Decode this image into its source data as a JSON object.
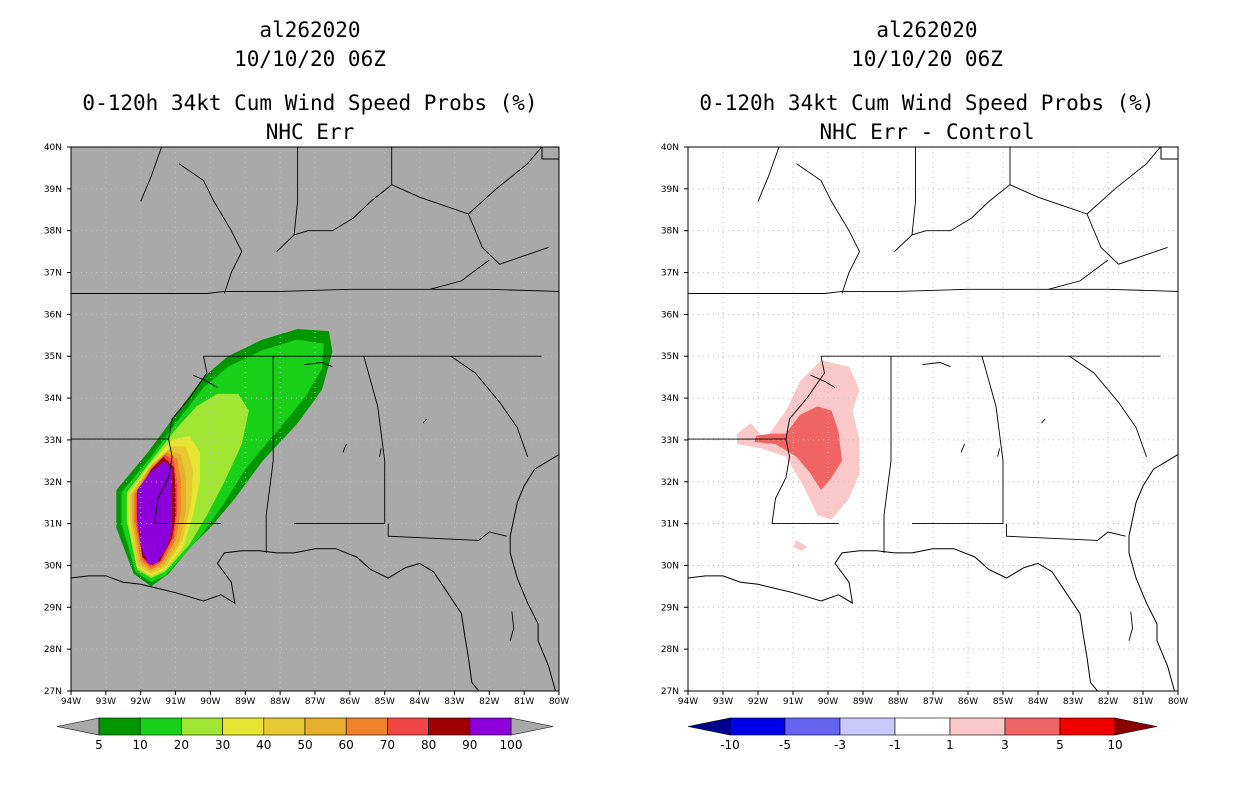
{
  "chart_data": [
    {
      "type": "heatmap",
      "storm_id": "al262020",
      "datetime": "10/10/20 06Z",
      "title": "0-120h 34kt Cum Wind Speed Probs (%)",
      "subtitle": "NHC Err",
      "lon_range": [
        -94,
        -80
      ],
      "lat_range": [
        27,
        40
      ],
      "lon_ticks": [
        "94W",
        "93W",
        "92W",
        "91W",
        "90W",
        "89W",
        "88W",
        "87W",
        "86W",
        "85W",
        "84W",
        "83W",
        "82W",
        "81W",
        "80W"
      ],
      "lat_ticks": [
        "27N",
        "28N",
        "29N",
        "30N",
        "31N",
        "32N",
        "33N",
        "34N",
        "35N",
        "36N",
        "37N",
        "38N",
        "39N",
        "40N"
      ],
      "background": "#a9a9a9",
      "colorbar": {
        "labels": [
          "5",
          "10",
          "20",
          "30",
          "40",
          "50",
          "60",
          "70",
          "80",
          "90",
          "100"
        ],
        "colors": [
          "#009600",
          "#18d018",
          "#a0e632",
          "#e6e632",
          "#e6c832",
          "#e6af2d",
          "#f08228",
          "#f04646",
          "#a00000",
          "#8c00dc"
        ],
        "end_color": "#a9a9a9"
      },
      "contours": [
        {
          "level": 5,
          "color": "#009600",
          "points": [
            [
              -92.7,
              30.9
            ],
            [
              -92.7,
              31.8
            ],
            [
              -91.8,
              32.7
            ],
            [
              -91,
              33.6
            ],
            [
              -90.2,
              34.5
            ],
            [
              -89.5,
              35
            ],
            [
              -88.5,
              35.4
            ],
            [
              -87.5,
              35.65
            ],
            [
              -86.6,
              35.6
            ],
            [
              -86.5,
              35.1
            ],
            [
              -86.8,
              34.2
            ],
            [
              -87.5,
              33.4
            ],
            [
              -88.5,
              32.5
            ],
            [
              -89.3,
              31.6
            ],
            [
              -90,
              30.9
            ],
            [
              -90.5,
              30.5
            ],
            [
              -91.2,
              29.8
            ],
            [
              -91.7,
              29.5
            ],
            [
              -92.2,
              29.8
            ]
          ]
        },
        {
          "level": 10,
          "color": "#18d018",
          "points": [
            [
              -92.55,
              31
            ],
            [
              -92.55,
              31.75
            ],
            [
              -91.7,
              32.6
            ],
            [
              -91,
              33.4
            ],
            [
              -90.2,
              34.25
            ],
            [
              -89.5,
              34.75
            ],
            [
              -88.5,
              35.15
            ],
            [
              -87.5,
              35.4
            ],
            [
              -86.75,
              35.3
            ],
            [
              -86.8,
              34.7
            ],
            [
              -87.3,
              34
            ],
            [
              -88.1,
              33.2
            ],
            [
              -89,
              32.3
            ],
            [
              -89.6,
              31.5
            ],
            [
              -90.2,
              30.8
            ],
            [
              -90.7,
              30.3
            ],
            [
              -91.3,
              29.75
            ],
            [
              -91.7,
              29.6
            ],
            [
              -92.15,
              29.85
            ]
          ]
        },
        {
          "level": 20,
          "color": "#a0e632",
          "points": [
            [
              -92.4,
              31.05
            ],
            [
              -92.4,
              31.75
            ],
            [
              -91.7,
              32.5
            ],
            [
              -91,
              33.25
            ],
            [
              -90.4,
              33.8
            ],
            [
              -89.8,
              34.1
            ],
            [
              -89.2,
              34.1
            ],
            [
              -88.9,
              33.7
            ],
            [
              -89.1,
              32.9
            ],
            [
              -89.6,
              32
            ],
            [
              -90.1,
              31.2
            ],
            [
              -90.6,
              30.5
            ],
            [
              -91.3,
              29.85
            ],
            [
              -91.7,
              29.7
            ],
            [
              -92.1,
              29.9
            ]
          ]
        },
        {
          "level": 30,
          "color": "#e6e632",
          "points": [
            [
              -92.35,
              31.05
            ],
            [
              -92.35,
              31.7
            ],
            [
              -91.7,
              32.45
            ],
            [
              -91.1,
              33
            ],
            [
              -90.6,
              33.1
            ],
            [
              -90.3,
              32.7
            ],
            [
              -90.3,
              32
            ],
            [
              -90.5,
              31.2
            ],
            [
              -90.8,
              30.4
            ],
            [
              -91.3,
              29.9
            ],
            [
              -91.7,
              29.75
            ],
            [
              -92.1,
              29.95
            ]
          ]
        },
        {
          "level": 40,
          "color": "#e6c832",
          "points": [
            [
              -92.3,
              31.05
            ],
            [
              -92.3,
              31.7
            ],
            [
              -91.7,
              32.4
            ],
            [
              -91.1,
              32.85
            ],
            [
              -90.7,
              32.85
            ],
            [
              -90.5,
              32.3
            ],
            [
              -90.55,
              31.5
            ],
            [
              -90.8,
              30.6
            ],
            [
              -91.3,
              29.95
            ],
            [
              -91.7,
              29.8
            ],
            [
              -92.1,
              30
            ]
          ]
        },
        {
          "level": 50,
          "color": "#e6af2d",
          "points": [
            [
              -92.25,
              31.05
            ],
            [
              -92.25,
              31.7
            ],
            [
              -91.7,
              32.4
            ],
            [
              -91.2,
              32.75
            ],
            [
              -90.85,
              32.65
            ],
            [
              -90.7,
              32.1
            ],
            [
              -90.7,
              31.3
            ],
            [
              -90.9,
              30.55
            ],
            [
              -91.35,
              30
            ],
            [
              -91.7,
              29.85
            ],
            [
              -92.05,
              30.05
            ]
          ]
        },
        {
          "level": 60,
          "color": "#f08228",
          "points": [
            [
              -92.2,
              31.05
            ],
            [
              -92.2,
              31.7
            ],
            [
              -91.7,
              32.35
            ],
            [
              -91.25,
              32.7
            ],
            [
              -90.95,
              32.55
            ],
            [
              -90.85,
              32
            ],
            [
              -90.85,
              31.3
            ],
            [
              -91,
              30.6
            ],
            [
              -91.4,
              30.05
            ],
            [
              -91.7,
              29.9
            ],
            [
              -92,
              30.1
            ]
          ]
        },
        {
          "level": 70,
          "color": "#f04646",
          "points": [
            [
              -92.15,
              31.05
            ],
            [
              -92.15,
              31.7
            ],
            [
              -91.7,
              32.3
            ],
            [
              -91.3,
              32.65
            ],
            [
              -91.05,
              32.5
            ],
            [
              -90.95,
              31.95
            ],
            [
              -90.95,
              31.3
            ],
            [
              -91.05,
              30.65
            ],
            [
              -91.4,
              30.1
            ],
            [
              -91.7,
              29.95
            ],
            [
              -91.95,
              30.15
            ]
          ]
        },
        {
          "level": 80,
          "color": "#a00000",
          "points": [
            [
              -92.1,
              31.05
            ],
            [
              -92.1,
              31.7
            ],
            [
              -91.7,
              32.3
            ],
            [
              -91.35,
              32.6
            ],
            [
              -91.05,
              32.35
            ],
            [
              -91,
              31.8
            ],
            [
              -91,
              31.2
            ],
            [
              -91.1,
              30.65
            ],
            [
              -91.45,
              30.1
            ],
            [
              -91.7,
              30
            ],
            [
              -91.95,
              30.2
            ]
          ]
        },
        {
          "level": 90,
          "color": "#8c00dc",
          "points": [
            [
              -92.1,
              31.1
            ],
            [
              -92.1,
              31.8
            ],
            [
              -91.7,
              32.25
            ],
            [
              -91.3,
              32.5
            ],
            [
              -91.1,
              32.3
            ],
            [
              -91.1,
              31.6
            ],
            [
              -91.1,
              30.9
            ],
            [
              -91.25,
              30.45
            ],
            [
              -91.55,
              30.05
            ],
            [
              -91.8,
              30.05
            ],
            [
              -92,
              30.45
            ]
          ]
        }
      ]
    },
    {
      "type": "heatmap",
      "storm_id": "al262020",
      "datetime": "10/10/20 06Z",
      "title": "0-120h 34kt Cum Wind Speed Probs (%)",
      "subtitle": "NHC Err - Control",
      "lon_range": [
        -94,
        -80
      ],
      "lat_range": [
        27,
        40
      ],
      "lon_ticks": [
        "94W",
        "93W",
        "92W",
        "91W",
        "90W",
        "89W",
        "88W",
        "87W",
        "86W",
        "85W",
        "84W",
        "83W",
        "82W",
        "81W",
        "80W"
      ],
      "lat_ticks": [
        "27N",
        "28N",
        "29N",
        "30N",
        "31N",
        "32N",
        "33N",
        "34N",
        "35N",
        "36N",
        "37N",
        "38N",
        "39N",
        "40N"
      ],
      "background": "#ffffff",
      "colorbar": {
        "labels": [
          "-10",
          "-5",
          "-3",
          "-1",
          "1",
          "3",
          "5",
          "10"
        ],
        "colors": [
          "#0000e6",
          "#6464f0",
          "#c8c8fa",
          "#ffffff",
          "#fac8c8",
          "#f06464",
          "#f00000"
        ],
        "end_left_color": "#00008c",
        "end_right_color": "#8c0000"
      },
      "contours": [
        {
          "level": 1,
          "color": "#fac8c8",
          "points": [
            [
              -91.8,
              33
            ],
            [
              -91.2,
              33.7
            ],
            [
              -90.8,
              34.4
            ],
            [
              -90.2,
              34.9
            ],
            [
              -89.4,
              34.75
            ],
            [
              -89.1,
              34.2
            ],
            [
              -89.3,
              33.7
            ],
            [
              -89.1,
              33
            ],
            [
              -89.1,
              32.2
            ],
            [
              -89.4,
              31.6
            ],
            [
              -89.9,
              31.1
            ],
            [
              -90.3,
              31.2
            ],
            [
              -90.7,
              31.9
            ],
            [
              -91.2,
              32.6
            ],
            [
              -91.9,
              32.8
            ],
            [
              -92.6,
              32.9
            ],
            [
              -92.6,
              33.15
            ],
            [
              -92.2,
              33.4
            ]
          ]
        },
        {
          "level": 1,
          "color": "#fac8c8",
          "points": [
            [
              -90.9,
              30.6
            ],
            [
              -90.6,
              30.45
            ],
            [
              -90.75,
              30.35
            ],
            [
              -91,
              30.45
            ]
          ]
        },
        {
          "level": 3,
          "color": "#f06464",
          "points": [
            [
              -91.2,
              33.15
            ],
            [
              -90.8,
              33.6
            ],
            [
              -90.3,
              33.8
            ],
            [
              -89.9,
              33.7
            ],
            [
              -89.7,
              33.2
            ],
            [
              -89.6,
              32.5
            ],
            [
              -89.9,
              32.1
            ],
            [
              -90.2,
              31.8
            ],
            [
              -90.5,
              32.2
            ],
            [
              -90.9,
              32.6
            ],
            [
              -91.5,
              32.9
            ],
            [
              -92.1,
              32.95
            ],
            [
              -92.05,
              33.1
            ],
            [
              -91.6,
              33.15
            ]
          ]
        }
      ]
    }
  ]
}
